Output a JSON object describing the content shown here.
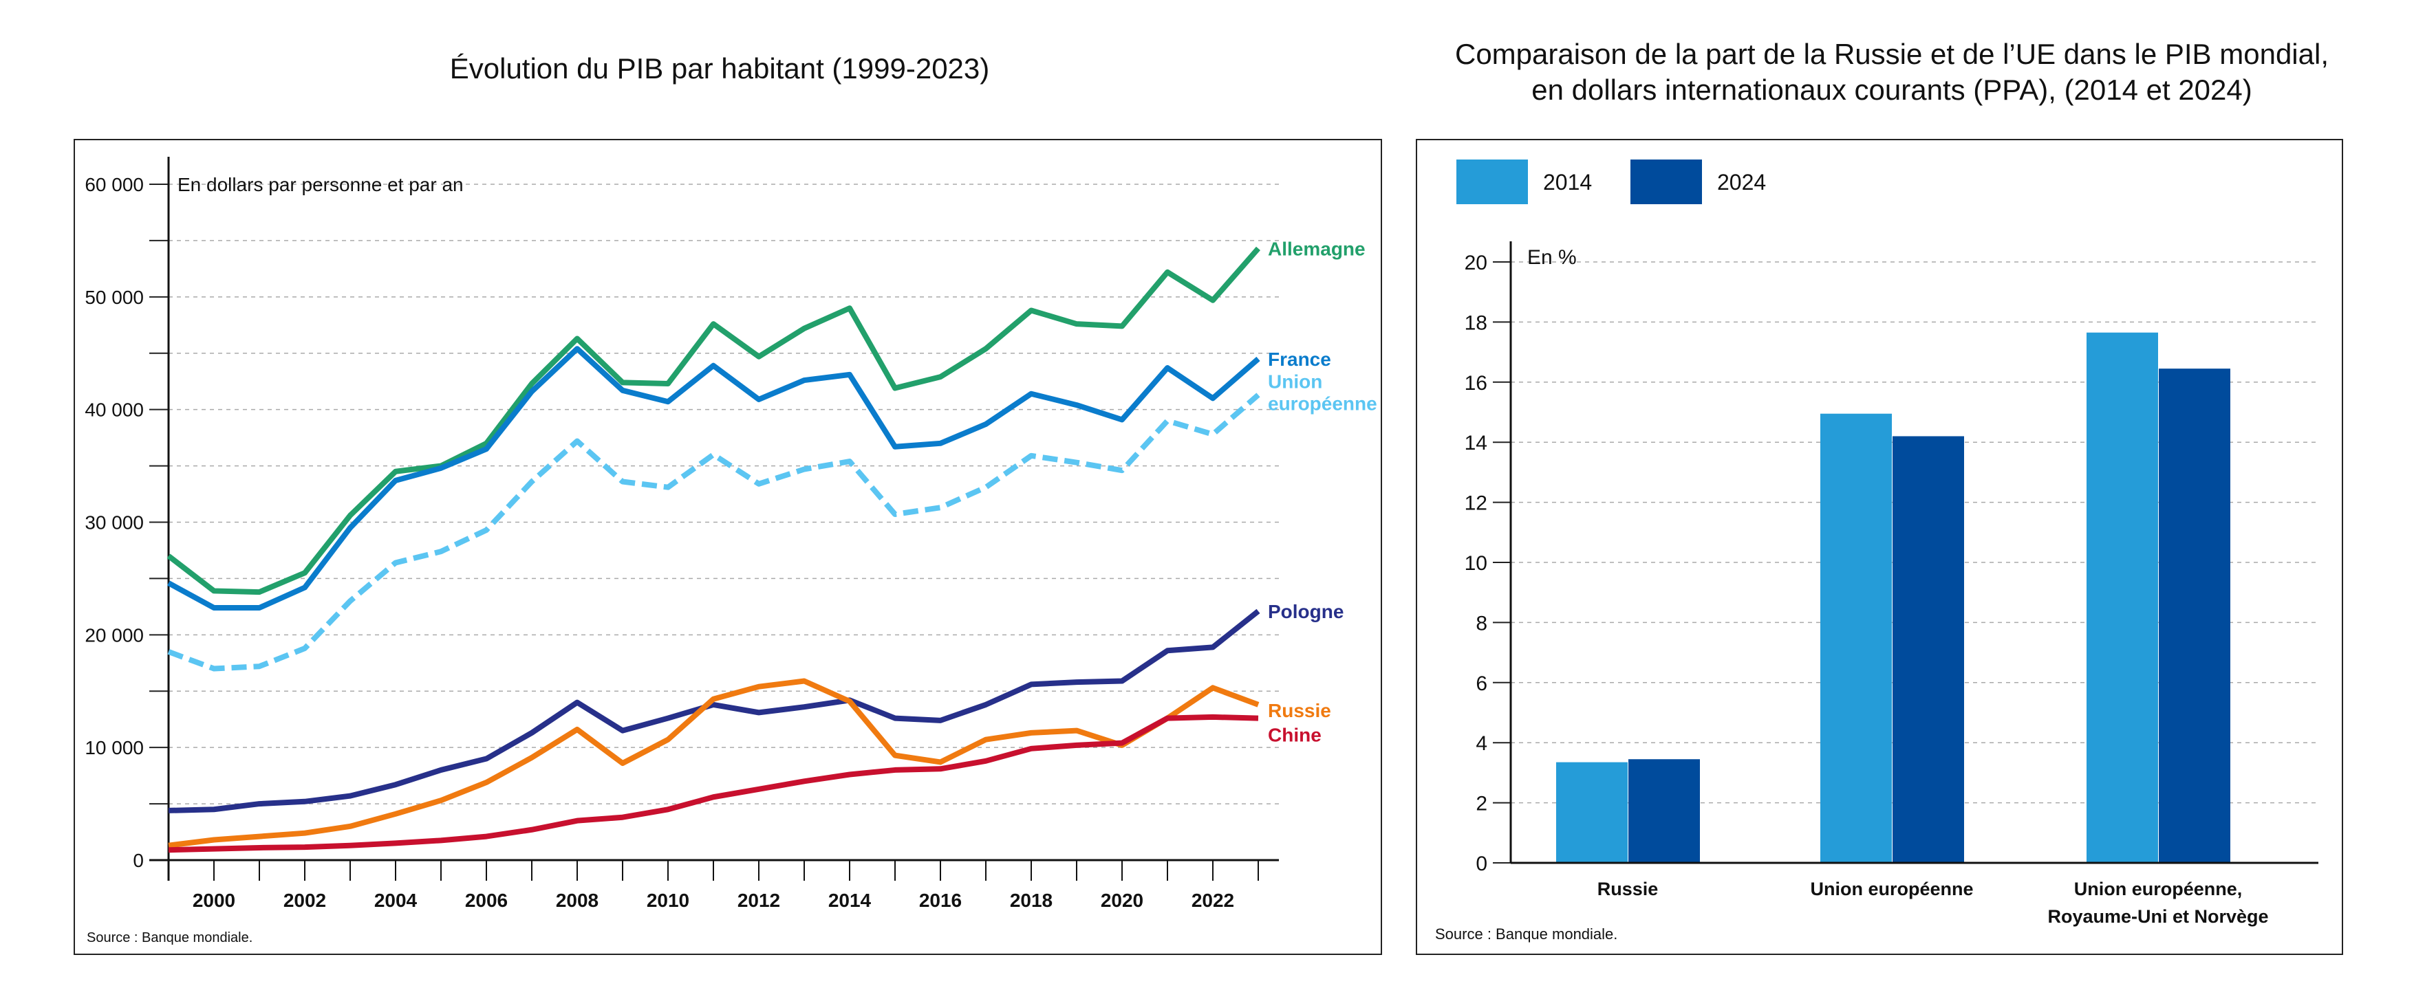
{
  "chart_data": [
    {
      "type": "line",
      "title": "Évolution du PIB par habitant (1999-2023)",
      "ylabel": "En dollars par personne et par an",
      "source": "Source : Banque mondiale.",
      "x": [
        1999,
        2000,
        2001,
        2002,
        2003,
        2004,
        2005,
        2006,
        2007,
        2008,
        2009,
        2010,
        2011,
        2012,
        2013,
        2014,
        2015,
        2016,
        2017,
        2018,
        2019,
        2020,
        2021,
        2022,
        2023
      ],
      "xticks": [
        "2000",
        "2002",
        "2004",
        "2006",
        "2008",
        "2010",
        "2012",
        "2014",
        "2016",
        "2018",
        "2020",
        "2022"
      ],
      "yticks": [
        "0",
        "10 000",
        "20 000",
        "30 000",
        "40 000",
        "50 000",
        "60 000"
      ],
      "ylim": [
        0,
        60000
      ],
      "grid": true,
      "series": [
        {
          "name": "Allemagne",
          "color": "#22a06b",
          "dashed": false,
          "values": [
            27000,
            23900,
            23800,
            25500,
            30600,
            34500,
            35000,
            37000,
            42300,
            46300,
            42400,
            42300,
            47600,
            44700,
            47200,
            49000,
            41900,
            42900,
            45400,
            48800,
            47600,
            47400,
            52200,
            49700,
            54300
          ]
        },
        {
          "name": "France",
          "color": "#0a7ccc",
          "dashed": false,
          "values": [
            24600,
            22400,
            22400,
            24200,
            29500,
            33700,
            34800,
            36500,
            41600,
            45400,
            41700,
            40700,
            43900,
            40900,
            42600,
            43100,
            36700,
            37000,
            38700,
            41400,
            40400,
            39100,
            43700,
            41000,
            44500
          ]
        },
        {
          "name": "Union européenne",
          "label_lines": [
            "Union",
            "européenne"
          ],
          "color": "#5bc5f2",
          "dashed": true,
          "values": [
            18500,
            17000,
            17200,
            18800,
            23000,
            26400,
            27400,
            29300,
            33600,
            37200,
            33600,
            33100,
            36000,
            33400,
            34700,
            35400,
            30700,
            31300,
            33100,
            35900,
            35300,
            34600,
            39000,
            37800,
            41300
          ]
        },
        {
          "name": "Pologne",
          "color": "#27308a",
          "dashed": false,
          "values": [
            4400,
            4500,
            5000,
            5200,
            5700,
            6700,
            8000,
            9000,
            11300,
            14000,
            11500,
            12600,
            13800,
            13100,
            13600,
            14200,
            12600,
            12400,
            13800,
            15600,
            15800,
            15900,
            18600,
            18900,
            22100
          ]
        },
        {
          "name": "Russie",
          "color": "#f07a10",
          "dashed": false,
          "values": [
            1300,
            1800,
            2100,
            2400,
            3000,
            4100,
            5300,
            6900,
            9100,
            11600,
            8600,
            10700,
            14300,
            15400,
            15900,
            14100,
            9300,
            8700,
            10700,
            11300,
            11500,
            10200,
            12600,
            15300,
            13800
          ]
        },
        {
          "name": "Chine",
          "color": "#c8102e",
          "dashed": false,
          "values": [
            900,
            1000,
            1100,
            1150,
            1300,
            1500,
            1750,
            2100,
            2700,
            3500,
            3800,
            4500,
            5600,
            6300,
            7000,
            7600,
            8000,
            8100,
            8800,
            9900,
            10200,
            10400,
            12600,
            12700,
            12600
          ]
        }
      ]
    },
    {
      "type": "bar",
      "title_lines": [
        "Comparaison de la part de la Russie et de l’UE dans le PIB mondial,",
        "en dollars internationaux courants (PPA), (2014 et 2024)"
      ],
      "ylabel": "En %",
      "source": "Source : Banque mondiale.",
      "categories": [
        [
          "Russie"
        ],
        [
          "Union européenne"
        ],
        [
          "Union européenne,",
          "Royaume-Uni et Norvège"
        ]
      ],
      "yticks": [
        "0",
        "2",
        "4",
        "6",
        "8",
        "10",
        "12",
        "14",
        "16",
        "18",
        "20"
      ],
      "ylim": [
        0,
        20
      ],
      "grid": true,
      "legend": "top-left",
      "series": [
        {
          "name": "2014",
          "color": "#259cd8",
          "values": [
            3.35,
            14.95,
            17.65
          ]
        },
        {
          "name": "2024",
          "color": "#004b9c",
          "values": [
            3.45,
            14.2,
            16.45
          ]
        }
      ]
    }
  ]
}
